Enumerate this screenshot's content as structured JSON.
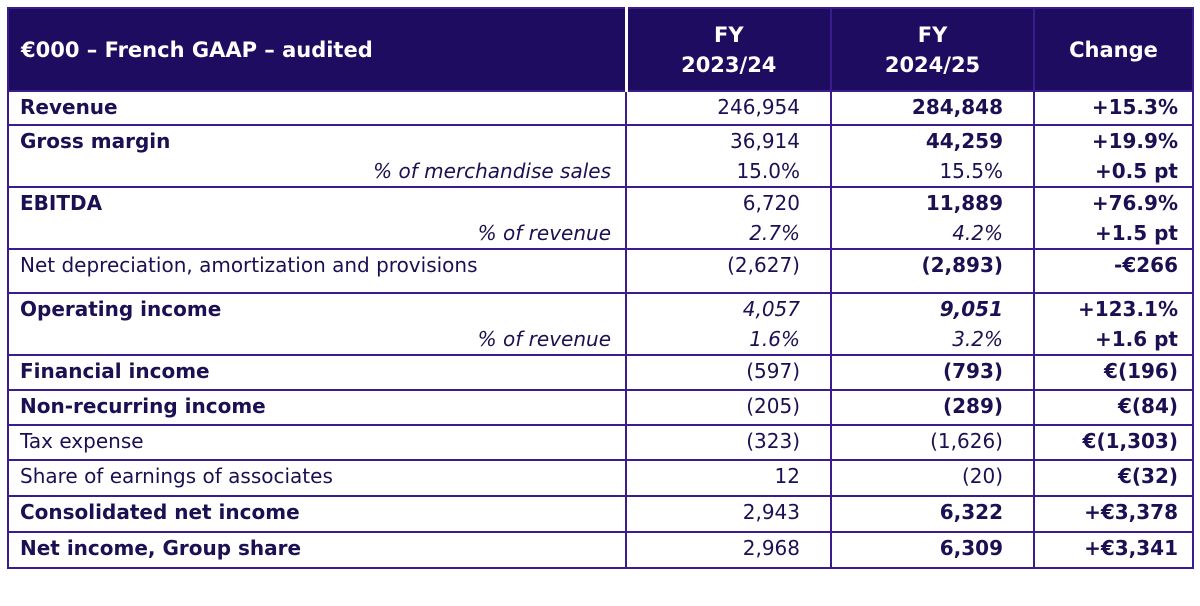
{
  "header": {
    "label": "€000 – French GAAP – audited",
    "col1": [
      "FY",
      "2023/24"
    ],
    "col2": [
      "FY",
      "2024/25"
    ],
    "change": "Change"
  },
  "colors": {
    "header_bg": "#1e0c60",
    "border": "#3b1c8c",
    "text": "#1b1052"
  },
  "rows": [
    {
      "label": "Revenue",
      "label_style": "b",
      "lines": [
        [
          "246,954",
          "284,848",
          "+15.3%"
        ]
      ],
      "styles": [
        [
          "",
          "b"
        ]
      ]
    },
    {
      "label": "Gross margin",
      "label_style": "b",
      "sub": "% of merchandise sales",
      "lines": [
        [
          "36,914",
          "44,259",
          "+19.9%"
        ],
        [
          "15.0%",
          "15.5%",
          "+0.5 pt"
        ]
      ],
      "styles": [
        [
          "",
          "b"
        ],
        [
          "",
          ""
        ]
      ]
    },
    {
      "label": "EBITDA",
      "label_style": "b",
      "sub": "% of revenue",
      "lines": [
        [
          "6,720",
          "11,889",
          "+76.9%"
        ],
        [
          "2.7%",
          "4.2%",
          "+1.5 pt"
        ]
      ],
      "styles": [
        [
          "",
          "b"
        ],
        [
          "i",
          "i"
        ]
      ]
    },
    {
      "label": "Net depreciation, amortization and provisions",
      "label_style": "",
      "lines": [
        [
          "(2,627)",
          "(2,893)",
          "-€266"
        ]
      ],
      "styles": [
        [
          "",
          "b"
        ]
      ]
    },
    {
      "label": "Operating income",
      "label_style": "b",
      "sub": "% of revenue",
      "lines": [
        [
          "4,057",
          "9,051",
          "+123.1%"
        ],
        [
          "1.6%",
          "3.2%",
          "+1.6 pt"
        ]
      ],
      "styles": [
        [
          "i",
          "b i"
        ],
        [
          "i",
          "i"
        ]
      ]
    },
    {
      "label": "Financial income",
      "label_style": "b",
      "lines": [
        [
          "(597)",
          "(793)",
          "€(196)"
        ]
      ],
      "styles": [
        [
          "",
          "b"
        ]
      ]
    },
    {
      "label": "Non-recurring income",
      "label_style": "b",
      "lines": [
        [
          "(205)",
          "(289)",
          "€(84)"
        ]
      ],
      "styles": [
        [
          "",
          "b"
        ]
      ]
    },
    {
      "label": "Tax expense",
      "label_style": "",
      "lines": [
        [
          "(323)",
          "(1,626)",
          "€(1,303)"
        ]
      ],
      "styles": [
        [
          "",
          ""
        ]
      ]
    },
    {
      "label": "Share of earnings of associates",
      "label_style": "",
      "lines": [
        [
          "12",
          "(20)",
          "€(32)"
        ]
      ],
      "styles": [
        [
          "",
          ""
        ]
      ]
    },
    {
      "label": "Consolidated net income",
      "label_style": "b",
      "lines": [
        [
          "2,943",
          "6,322",
          "+€3,378"
        ]
      ],
      "styles": [
        [
          "",
          "b"
        ]
      ]
    },
    {
      "label": "Net income, Group share",
      "label_style": "b",
      "lines": [
        [
          "2,968",
          "6,309",
          "+€3,341"
        ]
      ],
      "styles": [
        [
          "",
          "b"
        ]
      ]
    }
  ]
}
